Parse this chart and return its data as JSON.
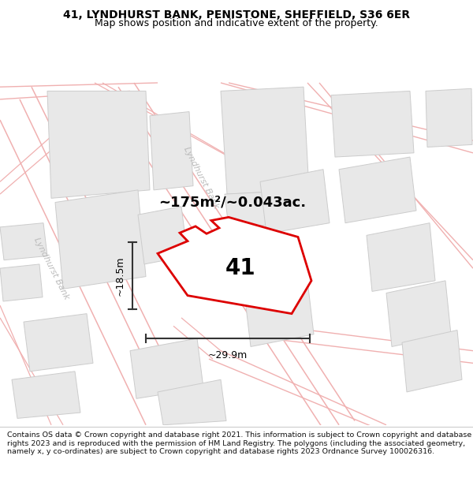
{
  "title_line1": "41, LYNDHURST BANK, PENISTONE, SHEFFIELD, S36 6ER",
  "title_line2": "Map shows position and indicative extent of the property.",
  "footer_text": "Contains OS data © Crown copyright and database right 2021. This information is subject to Crown copyright and database rights 2023 and is reproduced with the permission of HM Land Registry. The polygons (including the associated geometry, namely x, y co-ordinates) are subject to Crown copyright and database rights 2023 Ordnance Survey 100026316.",
  "area_label": "~175m²/~0.043ac.",
  "number_label": "41",
  "dim_height": "~18.5m",
  "dim_width": "~29.9m",
  "road_label_1": "Lyndhurst Bank",
  "road_label_2": "Lyndhurst Bank",
  "bg_color": "#ffffff",
  "map_bg": "#ffffff",
  "road_color": "#f0b0b0",
  "building_fill": "#e8e8e8",
  "building_edge": "#cccccc",
  "highlight_color": "#dd0000",
  "dim_color": "#333333",
  "text_color": "#000000",
  "road_text_color": "#bbbbbb",
  "title_fontsize": 10,
  "subtitle_fontsize": 9,
  "area_fontsize": 13,
  "num_fontsize": 20,
  "dim_fontsize": 9,
  "footer_fontsize": 6.8
}
